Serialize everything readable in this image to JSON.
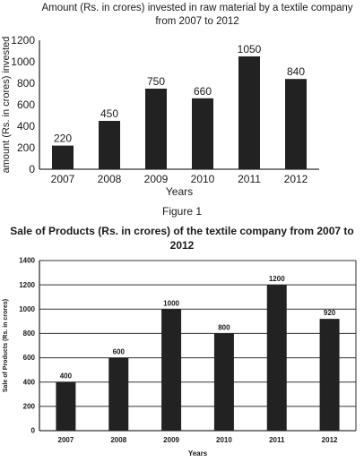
{
  "chart_data": [
    {
      "type": "bar",
      "title": "Amount (Rs. in crores) invested in raw material by a textile company from 2007 to 2012",
      "caption": "Figure 1",
      "xlabel": "Years",
      "ylabel": "amount (Rs. in crores) invested",
      "categories": [
        "2007",
        "2008",
        "2009",
        "2010",
        "2011",
        "2012"
      ],
      "values": [
        220,
        450,
        750,
        660,
        1050,
        840
      ],
      "data_labels": [
        "220",
        "450",
        "750",
        "660",
        "1050",
        "840"
      ],
      "yticks": [
        0,
        200,
        400,
        600,
        800,
        1000,
        1200
      ],
      "ylim": [
        0,
        1200
      ],
      "grid": false,
      "bar_color": "#222222"
    },
    {
      "type": "bar",
      "title": "Sale of Products (Rs. in crores) of the textile company from 2007 to 2012",
      "xlabel": "Years",
      "ylabel": "Sale of Products (Rs. in crores)",
      "categories": [
        "2007",
        "2008",
        "2009",
        "2010",
        "2011",
        "2012"
      ],
      "values": [
        400,
        600,
        1000,
        800,
        1200,
        920
      ],
      "data_labels": [
        "400",
        "600",
        "1000",
        "800",
        "1200",
        "920"
      ],
      "yticks": [
        0,
        200,
        400,
        600,
        800,
        1000,
        1200,
        1400
      ],
      "ylim": [
        0,
        1400
      ],
      "grid": true,
      "bar_color": "#222222"
    }
  ]
}
